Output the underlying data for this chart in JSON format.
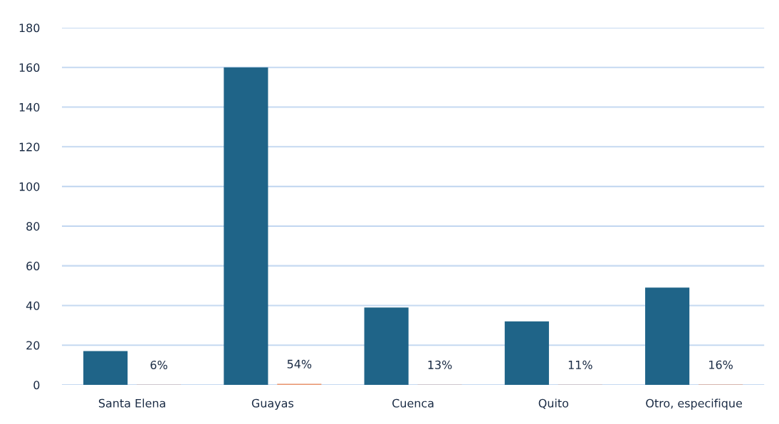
{
  "chart_data": {
    "type": "bar",
    "categories": [
      "Santa Elena",
      "Guayas",
      "Cuenca",
      "Quito",
      "Otro, especifique"
    ],
    "series": [
      {
        "color": "#1f6488",
        "values": [
          17,
          160,
          39,
          32,
          49
        ]
      },
      {
        "color": "#e8926a",
        "values": [
          0.06,
          0.54,
          0.13,
          0.11,
          0.16
        ],
        "value_labels": [
          "6%",
          "54%",
          "13%",
          "11%",
          "16%"
        ]
      }
    ],
    "ylim": [
      0,
      180
    ],
    "yticks": [
      0,
      20,
      40,
      60,
      80,
      100,
      120,
      140,
      160,
      180
    ],
    "grid": "y"
  }
}
